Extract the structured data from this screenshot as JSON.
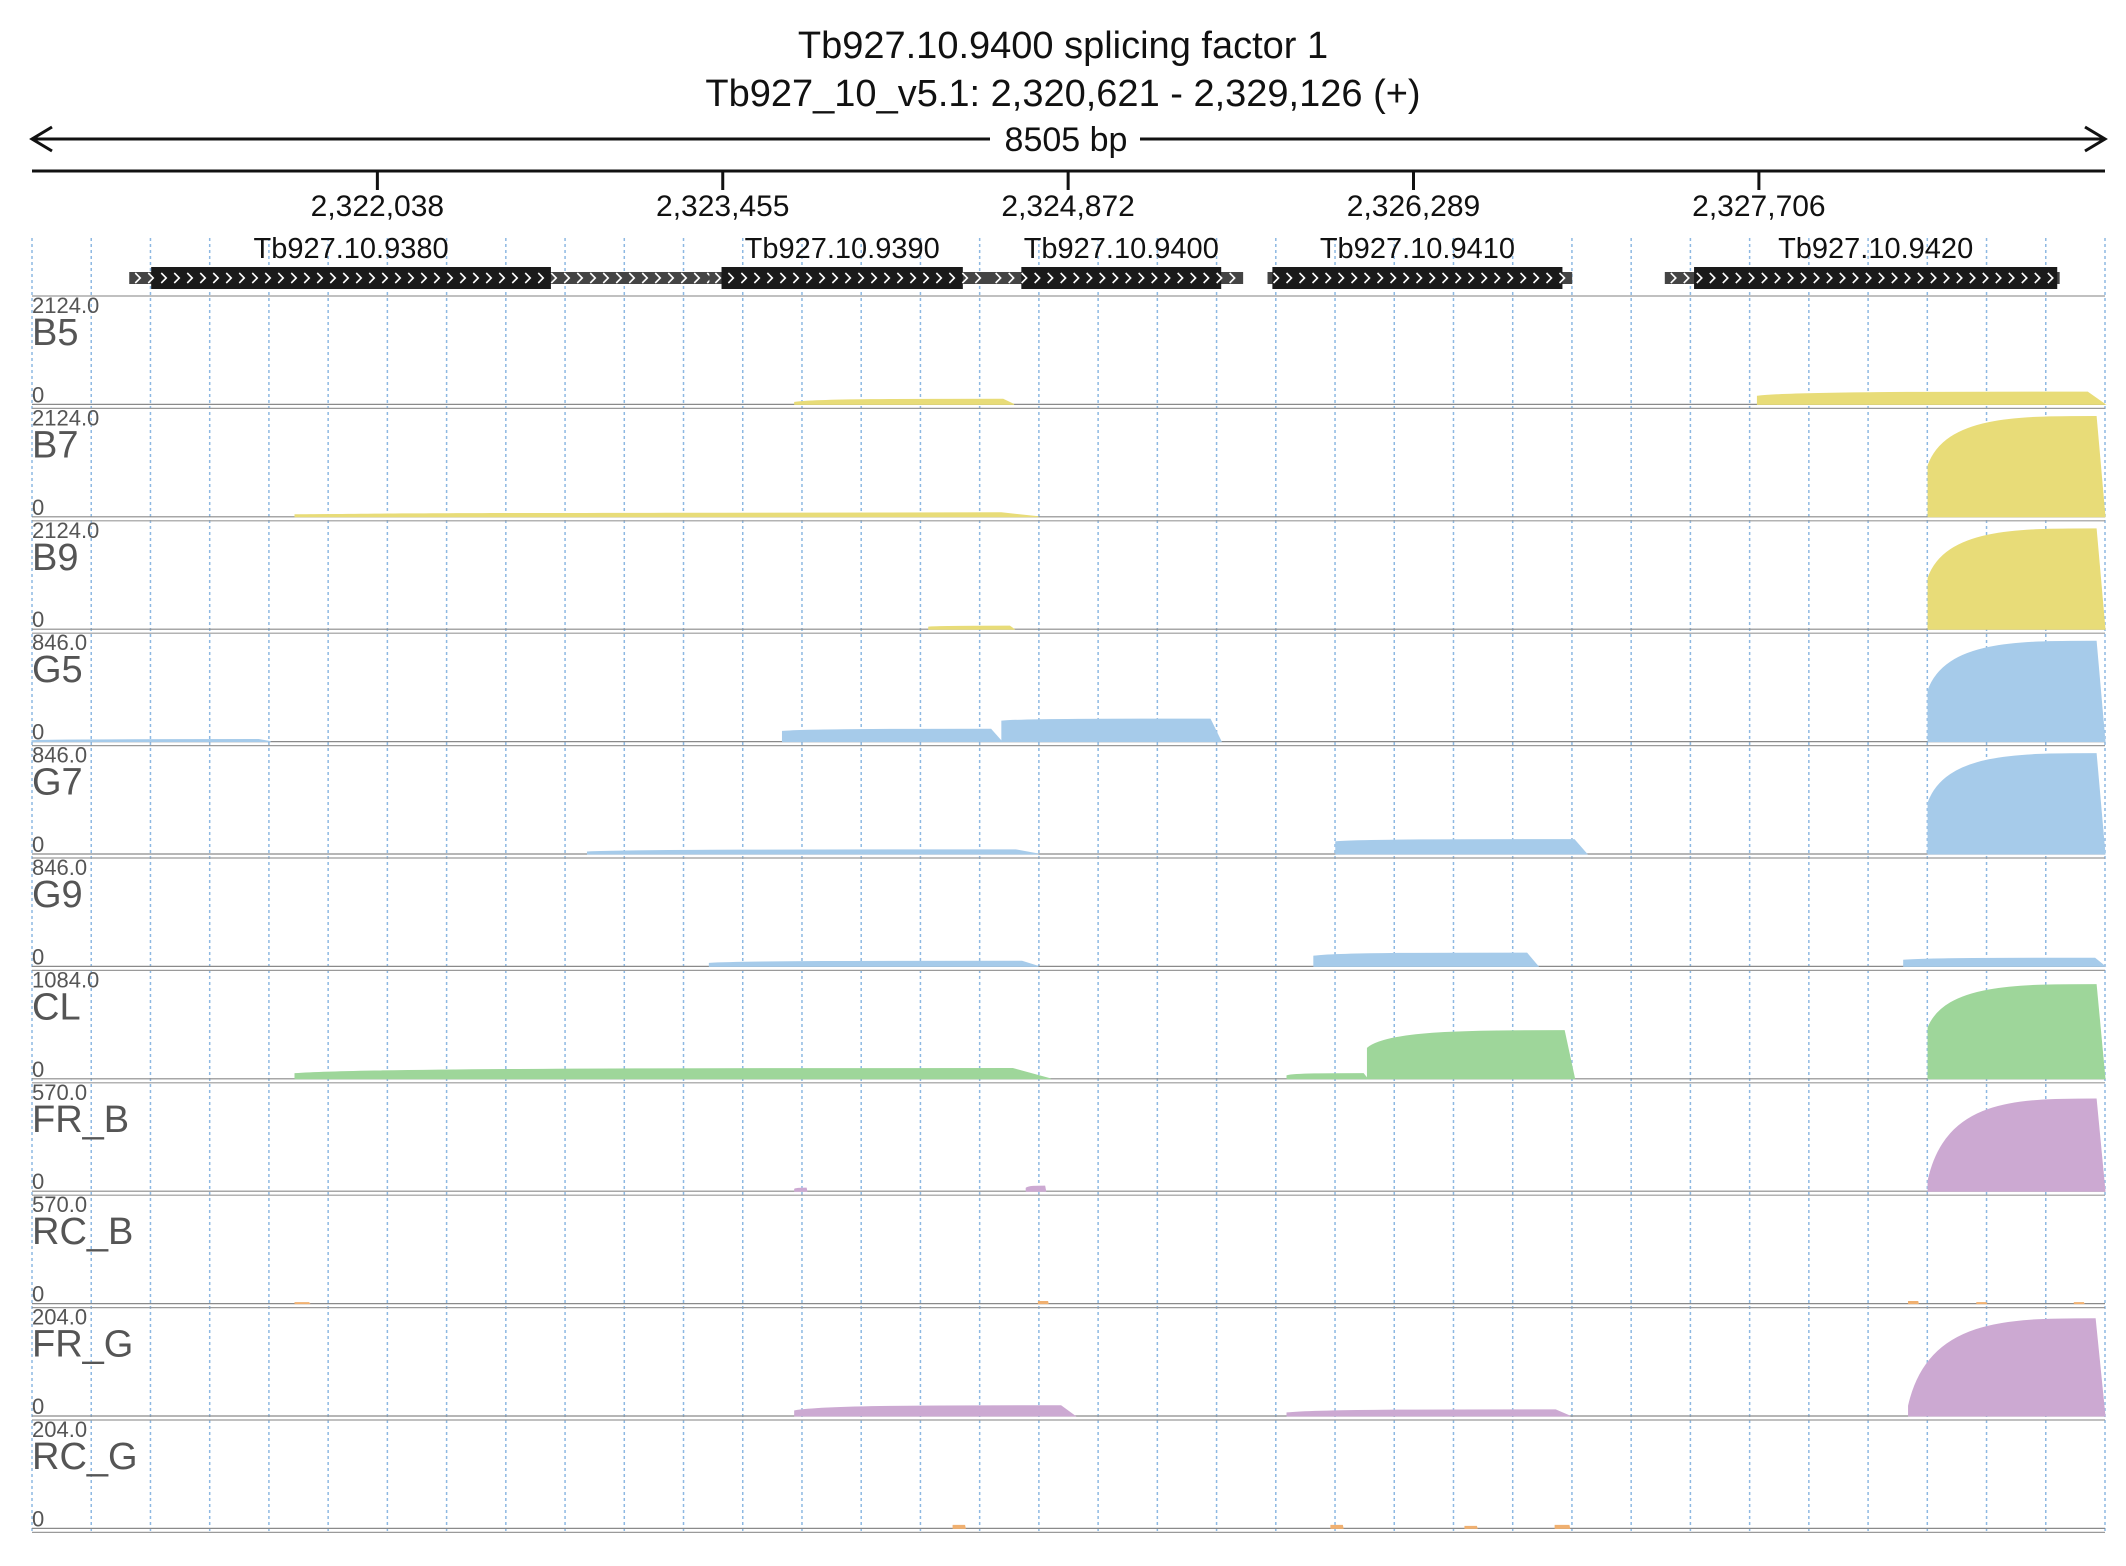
{
  "chart_data": {
    "type": "area",
    "title": "Tb927.10.9400  splicing factor 1",
    "subtitle": "Tb927_10_v5.1: 2,320,621 - 2,329,126 (+)",
    "span_label": "8505 bp",
    "region": {
      "start": 2320621,
      "end": 2329126
    },
    "ticks": [
      {
        "pos": 2322038,
        "label": "2,322,038"
      },
      {
        "pos": 2323455,
        "label": "2,323,455"
      },
      {
        "pos": 2324872,
        "label": "2,324,872"
      },
      {
        "pos": 2326289,
        "label": "2,326,289"
      },
      {
        "pos": 2327706,
        "label": "2,327,706"
      }
    ],
    "genes": [
      {
        "name": "Tb927.10.9380",
        "utr": [
          2321020,
          2323550
        ],
        "cds": [
          2321110,
          2322750
        ]
      },
      {
        "name": "Tb927.10.9390",
        "utr": [
          2323400,
          2324570
        ],
        "cds": [
          2323450,
          2324440
        ]
      },
      {
        "name": "Tb927.10.9400",
        "utr": [
          2324550,
          2325590
        ],
        "cds": [
          2324680,
          2325500
        ]
      },
      {
        "name": "Tb927.10.9410",
        "utr": [
          2325690,
          2326940
        ],
        "cds": [
          2325710,
          2326900
        ]
      },
      {
        "name": "Tb927.10.9420",
        "utr": [
          2327320,
          2328940
        ],
        "cds": [
          2327440,
          2328930
        ]
      }
    ],
    "tracks": [
      {
        "name": "B5",
        "max": "2124.0",
        "min": "0",
        "color": "#e8dc78",
        "segments": [
          [
            2323750,
            2324650,
            0.02,
            0.05
          ],
          [
            2327700,
            2329126,
            0.08,
            0.12
          ]
        ]
      },
      {
        "name": "B7",
        "max": "2124.0",
        "min": "0",
        "color": "#e8dc78",
        "segments": [
          [
            2321700,
            2324750,
            0.02,
            0.04
          ],
          [
            2328400,
            2329126,
            0.5,
            0.98
          ]
        ]
      },
      {
        "name": "B9",
        "max": "2124.0",
        "min": "0",
        "color": "#e8dc78",
        "segments": [
          [
            2324300,
            2324650,
            0.02,
            0.03
          ],
          [
            2328400,
            2329126,
            0.5,
            0.98
          ]
        ]
      },
      {
        "name": "G5",
        "max": "846.0",
        "min": "0",
        "color": "#a6cbea",
        "segments": [
          [
            2320621,
            2321600,
            0.01,
            0.02
          ],
          [
            2323700,
            2324600,
            0.1,
            0.12
          ],
          [
            2324600,
            2325500,
            0.2,
            0.22
          ],
          [
            2328400,
            2329126,
            0.5,
            0.98
          ]
        ]
      },
      {
        "name": "G7",
        "max": "846.0",
        "min": "0",
        "color": "#a6cbea",
        "segments": [
          [
            2322900,
            2324750,
            0.02,
            0.04
          ],
          [
            2325970,
            2327000,
            0.12,
            0.14
          ],
          [
            2328400,
            2329126,
            0.5,
            0.98
          ]
        ]
      },
      {
        "name": "G9",
        "max": "846.0",
        "min": "0",
        "color": "#a6cbea",
        "segments": [
          [
            2323400,
            2324750,
            0.03,
            0.05
          ],
          [
            2325880,
            2326800,
            0.1,
            0.13
          ],
          [
            2328300,
            2329126,
            0.06,
            0.08
          ]
        ]
      },
      {
        "name": "CL",
        "max": "1084.0",
        "min": "0",
        "color": "#9ed69a",
        "segments": [
          [
            2321700,
            2324800,
            0.05,
            0.1
          ],
          [
            2325770,
            2326100,
            0.03,
            0.05
          ],
          [
            2326100,
            2326950,
            0.3,
            0.47
          ],
          [
            2328400,
            2329126,
            0.5,
            0.92
          ]
        ]
      },
      {
        "name": "FR_B",
        "max": "570.0",
        "min": "0",
        "color": "#cca9d2",
        "segments": [
          [
            2323750,
            2323800,
            0.02,
            0.03
          ],
          [
            2324700,
            2324780,
            0.03,
            0.05
          ],
          [
            2328400,
            2329126,
            0.1,
            0.9
          ]
        ]
      },
      {
        "name": "RC_B",
        "max": "570.0",
        "min": "0",
        "color": "#f0b070",
        "segments": [
          [
            2321700,
            2321760,
            0.01,
            0.01
          ],
          [
            2324750,
            2324790,
            0.02,
            0.02
          ],
          [
            2328320,
            2328360,
            0.02,
            0.02
          ],
          [
            2328600,
            2328640,
            0.01,
            0.01
          ],
          [
            2329000,
            2329040,
            0.01,
            0.01
          ]
        ]
      },
      {
        "name": "FR_G",
        "max": "204.0",
        "min": "0",
        "color": "#cca9d2",
        "segments": [
          [
            2323750,
            2324900,
            0.05,
            0.1
          ],
          [
            2325770,
            2326930,
            0.03,
            0.06
          ],
          [
            2328320,
            2329126,
            0.1,
            0.95
          ]
        ]
      },
      {
        "name": "RC_G",
        "max": "204.0",
        "min": "0",
        "color": "#f0b070",
        "segments": [
          [
            2324400,
            2324450,
            0.03,
            0.03
          ],
          [
            2325950,
            2326000,
            0.03,
            0.03
          ],
          [
            2326500,
            2326550,
            0.02,
            0.02
          ],
          [
            2326870,
            2326930,
            0.03,
            0.03
          ]
        ]
      }
    ]
  }
}
